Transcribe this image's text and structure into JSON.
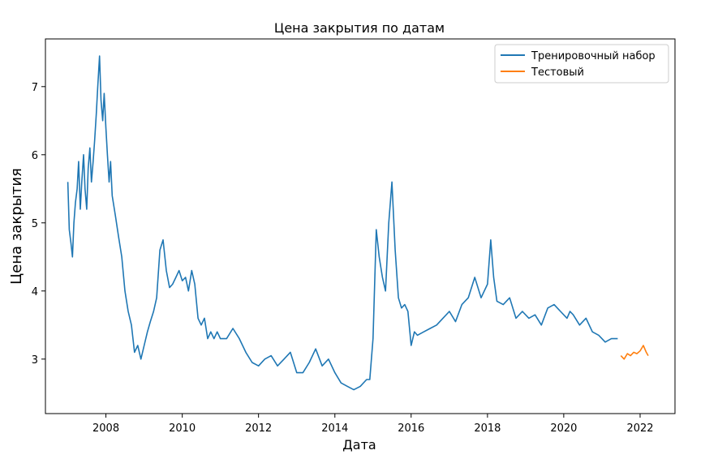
{
  "chart_data": {
    "type": "line",
    "title": "Цена закрытия по датам",
    "xlabel": "Дата",
    "ylabel": "Цена закрытия",
    "xlim": [
      "2006-06-01",
      "2022-12-01"
    ],
    "ylim": [
      2.2,
      7.7
    ],
    "x_ticks": [
      "2008",
      "2010",
      "2012",
      "2014",
      "2016",
      "2018",
      "2020",
      "2022"
    ],
    "y_ticks": [
      3,
      4,
      5,
      6,
      7
    ],
    "grid": false,
    "legend_position": "upper right",
    "series": [
      {
        "name": "Тренировочный набор",
        "color": "#1f77b4",
        "x": [
          "2007-01-01",
          "2007-01-15",
          "2007-02-01",
          "2007-02-15",
          "2007-03-01",
          "2007-03-15",
          "2007-04-01",
          "2007-04-15",
          "2007-05-01",
          "2007-05-15",
          "2007-06-01",
          "2007-06-15",
          "2007-07-01",
          "2007-07-15",
          "2007-08-01",
          "2007-08-15",
          "2007-09-01",
          "2007-09-15",
          "2007-10-01",
          "2007-10-15",
          "2007-11-01",
          "2007-11-15",
          "2007-12-01",
          "2007-12-15",
          "2008-01-01",
          "2008-01-15",
          "2008-02-01",
          "2008-02-15",
          "2008-03-01",
          "2008-04-01",
          "2008-05-01",
          "2008-06-01",
          "2008-07-01",
          "2008-08-01",
          "2008-09-01",
          "2008-10-01",
          "2008-11-01",
          "2008-12-01",
          "2009-01-01",
          "2009-02-01",
          "2009-03-01",
          "2009-04-01",
          "2009-05-01",
          "2009-06-01",
          "2009-07-01",
          "2009-08-01",
          "2009-09-01",
          "2009-10-01",
          "2009-11-01",
          "2009-12-01",
          "2010-01-01",
          "2010-02-01",
          "2010-03-01",
          "2010-04-01",
          "2010-05-01",
          "2010-06-01",
          "2010-07-01",
          "2010-08-01",
          "2010-09-01",
          "2010-10-01",
          "2010-11-01",
          "2010-12-01",
          "2011-01-01",
          "2011-03-01",
          "2011-05-01",
          "2011-07-01",
          "2011-09-01",
          "2011-11-01",
          "2012-01-01",
          "2012-03-01",
          "2012-05-01",
          "2012-07-01",
          "2012-09-01",
          "2012-11-01",
          "2013-01-01",
          "2013-03-01",
          "2013-05-01",
          "2013-07-01",
          "2013-09-01",
          "2013-11-01",
          "2014-01-01",
          "2014-03-01",
          "2014-05-01",
          "2014-07-01",
          "2014-09-01",
          "2014-11-01",
          "2014-12-01",
          "2015-01-01",
          "2015-02-01",
          "2015-03-01",
          "2015-04-01",
          "2015-05-01",
          "2015-06-01",
          "2015-07-01",
          "2015-08-01",
          "2015-09-01",
          "2015-10-01",
          "2015-11-01",
          "2015-12-01",
          "2016-01-01",
          "2016-02-01",
          "2016-03-01",
          "2016-05-01",
          "2016-07-01",
          "2016-09-01",
          "2016-11-01",
          "2017-01-01",
          "2017-03-01",
          "2017-05-01",
          "2017-07-01",
          "2017-09-01",
          "2017-11-01",
          "2018-01-01",
          "2018-02-01",
          "2018-03-01",
          "2018-04-01",
          "2018-06-01",
          "2018-08-01",
          "2018-10-01",
          "2018-12-01",
          "2019-02-01",
          "2019-04-01",
          "2019-06-01",
          "2019-08-01",
          "2019-10-01",
          "2019-12-01",
          "2020-02-01",
          "2020-03-01",
          "2020-04-01",
          "2020-06-01",
          "2020-08-01",
          "2020-10-01",
          "2020-12-01",
          "2021-02-01",
          "2021-04-01",
          "2021-06-01"
        ],
        "values": [
          5.6,
          4.9,
          4.7,
          4.5,
          5.0,
          5.3,
          5.5,
          5.9,
          5.2,
          5.6,
          6.0,
          5.5,
          5.2,
          5.8,
          6.1,
          5.6,
          5.9,
          6.2,
          6.6,
          7.0,
          7.45,
          6.8,
          6.5,
          6.9,
          6.4,
          6.0,
          5.6,
          5.9,
          5.4,
          5.1,
          4.8,
          4.5,
          4.0,
          3.7,
          3.5,
          3.1,
          3.2,
          3.0,
          3.2,
          3.4,
          3.55,
          3.7,
          3.9,
          4.6,
          4.75,
          4.3,
          4.05,
          4.1,
          4.2,
          4.3,
          4.15,
          4.2,
          4.0,
          4.3,
          4.1,
          3.6,
          3.5,
          3.6,
          3.3,
          3.4,
          3.3,
          3.4,
          3.3,
          3.3,
          3.45,
          3.3,
          3.1,
          2.95,
          2.9,
          3.0,
          3.05,
          2.9,
          3.0,
          3.1,
          2.8,
          2.8,
          2.95,
          3.15,
          2.9,
          3.0,
          2.8,
          2.65,
          2.6,
          2.55,
          2.6,
          2.7,
          2.7,
          3.3,
          4.9,
          4.5,
          4.2,
          4.0,
          5.0,
          5.6,
          4.6,
          3.9,
          3.75,
          3.8,
          3.7,
          3.2,
          3.4,
          3.35,
          3.4,
          3.45,
          3.5,
          3.6,
          3.7,
          3.55,
          3.8,
          3.9,
          4.2,
          3.9,
          4.1,
          4.75,
          4.2,
          3.85,
          3.8,
          3.9,
          3.6,
          3.7,
          3.6,
          3.65,
          3.5,
          3.75,
          3.8,
          3.7,
          3.6,
          3.7,
          3.65,
          3.5,
          3.6,
          3.4,
          3.35,
          3.25,
          3.3,
          3.3
        ]
      },
      {
        "name": "Тестовый",
        "color": "#ff7f0e",
        "x": [
          "2021-07-01",
          "2021-08-01",
          "2021-09-01",
          "2021-10-01",
          "2021-11-01",
          "2021-12-01",
          "2022-01-01",
          "2022-02-01",
          "2022-03-01",
          "2022-03-20"
        ],
        "values": [
          3.05,
          3.0,
          3.08,
          3.05,
          3.1,
          3.08,
          3.12,
          3.2,
          3.1,
          3.05
        ]
      }
    ]
  }
}
